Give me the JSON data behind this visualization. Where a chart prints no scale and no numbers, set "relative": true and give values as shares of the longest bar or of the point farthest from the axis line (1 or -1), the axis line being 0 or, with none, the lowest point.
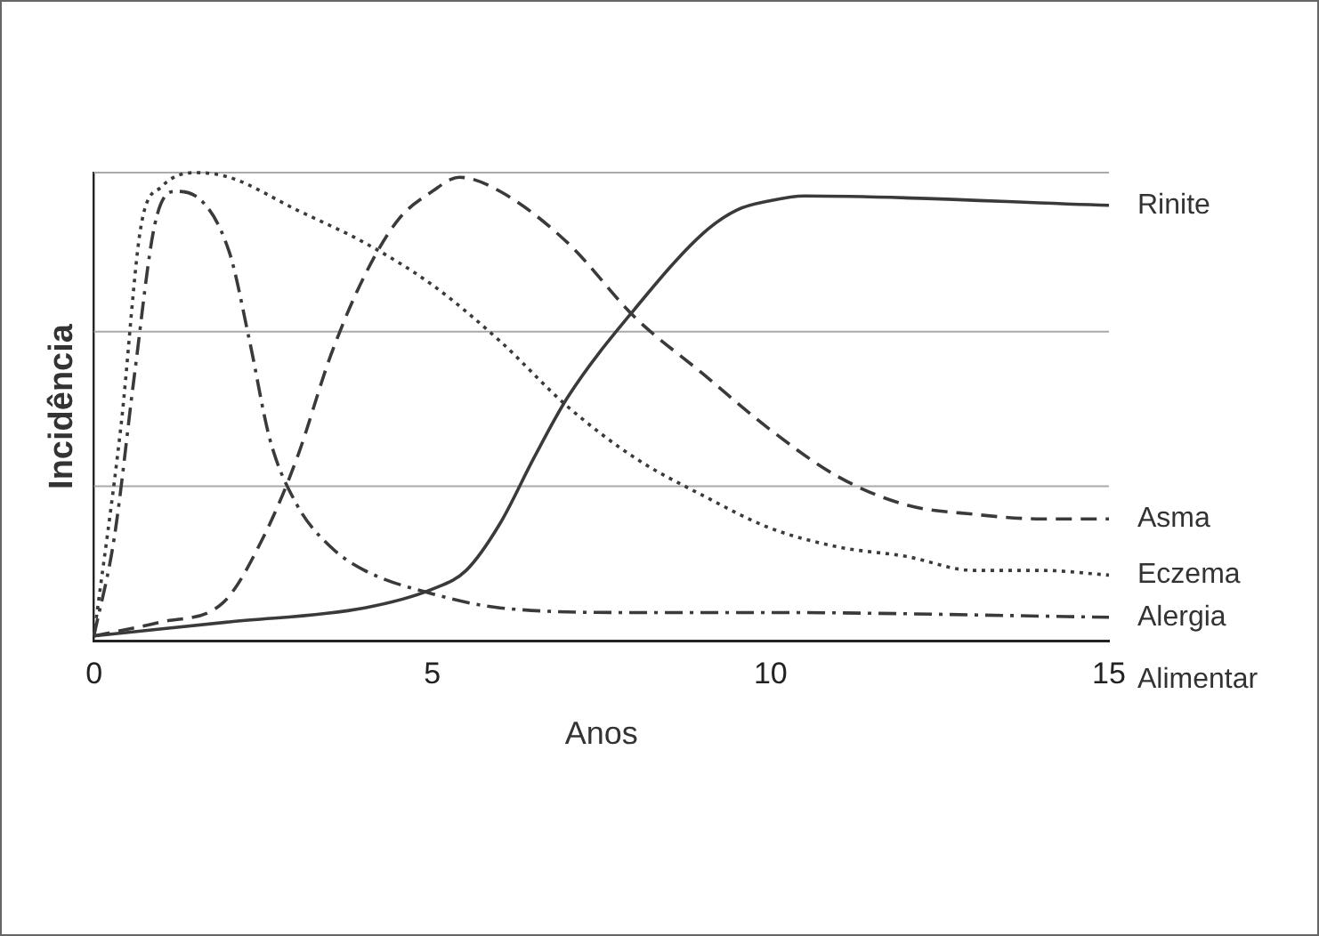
{
  "chart_data": {
    "type": "line",
    "relative": true,
    "xlabel": "Anos",
    "ylabel": "Incidência",
    "xlim": [
      0,
      15
    ],
    "xticks": [
      0,
      5,
      10,
      15
    ],
    "ref_lines": [
      {
        "axis": "y",
        "value": 0.33,
        "color": "#aaaaaa"
      },
      {
        "axis": "y",
        "value": 0.66,
        "color": "#aaaaaa"
      },
      {
        "axis": "y",
        "value": 1,
        "color": "#aaaaaa"
      }
    ],
    "legend": false,
    "marker": "none",
    "series": [
      {
        "name": "Rinite",
        "color": "#3a3a3a",
        "line_style": "solid",
        "x": [
          0,
          2,
          4,
          5,
          5.5,
          6,
          6.5,
          7,
          8,
          9,
          9.5,
          10,
          10.5,
          15
        ],
        "values": [
          0.01,
          0.04,
          0.07,
          0.11,
          0.15,
          0.25,
          0.39,
          0.52,
          0.71,
          0.87,
          0.92,
          0.94,
          0.95,
          0.93
        ]
      },
      {
        "name": "Asma",
        "color": "#3a3a3a",
        "line_style": "dashed",
        "x": [
          0,
          1,
          1.9,
          2.5,
          3,
          3.5,
          4,
          4.5,
          5,
          5.4,
          6,
          7,
          8,
          9,
          10,
          11,
          12,
          13,
          14,
          15
        ],
        "values": [
          0.01,
          0.04,
          0.08,
          0.22,
          0.39,
          0.61,
          0.78,
          0.9,
          0.96,
          0.99,
          0.96,
          0.85,
          0.69,
          0.57,
          0.45,
          0.35,
          0.29,
          0.27,
          0.26,
          0.26
        ]
      },
      {
        "name": "Eczema",
        "color": "#3a3a3a",
        "line_style": "dotted",
        "x": [
          0,
          0.4,
          0.7,
          1,
          1.5,
          2,
          3,
          4,
          5,
          6,
          7,
          8,
          9,
          10,
          11,
          12,
          13,
          14,
          15
        ],
        "values": [
          0.01,
          0.46,
          0.89,
          0.97,
          1,
          0.99,
          0.92,
          0.85,
          0.76,
          0.64,
          0.5,
          0.39,
          0.31,
          0.24,
          0.2,
          0.18,
          0.15,
          0.15,
          0.14
        ]
      },
      {
        "name": "Alergia Alimentar",
        "color": "#3a3a3a",
        "line_style": "dashdot",
        "x": [
          0,
          0.3,
          0.6,
          0.9,
          1.2,
          1.5,
          2,
          2.3,
          2.6,
          3,
          3.5,
          4,
          5,
          6,
          8,
          10,
          15
        ],
        "values": [
          0.01,
          0.22,
          0.57,
          0.89,
          0.96,
          0.95,
          0.83,
          0.64,
          0.43,
          0.29,
          0.2,
          0.15,
          0.1,
          0.07,
          0.06,
          0.06,
          0.05
        ]
      }
    ]
  }
}
